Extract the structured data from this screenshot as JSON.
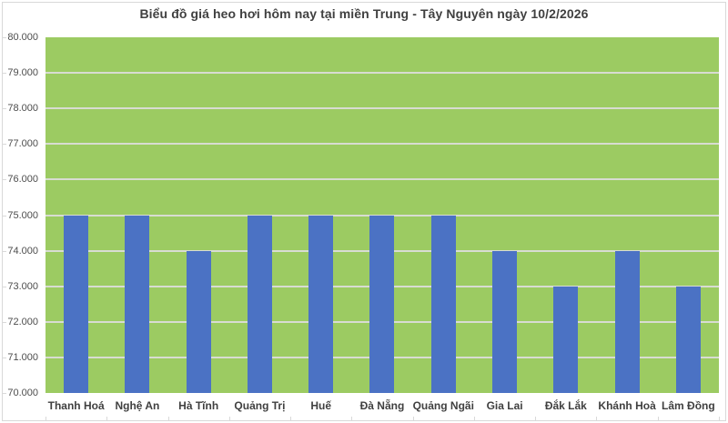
{
  "chart_data": {
    "type": "bar",
    "title": "Biểu đồ giá heo hơi hôm nay tại miền Trung - Tây Nguyên ngày 10/2/2026",
    "categories": [
      "Thanh Hoá",
      "Nghệ An",
      "Hà Tĩnh",
      "Quảng Trị",
      "Huế",
      "Đà Nẵng",
      "Quảng Ngãi",
      "Gia Lai",
      "Đắk Lắk",
      "Khánh Hoà",
      "Lâm Đồng"
    ],
    "values": [
      75000,
      75000,
      74000,
      75000,
      75000,
      75000,
      75000,
      74000,
      73000,
      74000,
      73000
    ],
    "xlabel": "",
    "ylabel": "",
    "ylim": [
      70000,
      80000
    ],
    "ytick_step": 1000,
    "ytick_labels": [
      "80.000",
      "79.000",
      "78.000",
      "77.000",
      "76.000",
      "75.000",
      "74.000",
      "73.000",
      "72.000",
      "71.000",
      "70.000"
    ],
    "grid": true,
    "legend": "none",
    "colors": {
      "bar": "#4b72c4",
      "plot_background": "#9ccb62",
      "gridline": "#d8dcd2",
      "title_text": "#404040",
      "axis_text": "#4d4d4d",
      "category_text": "#404040",
      "border": "#d9d9d9",
      "page_background": "#ffffff"
    }
  }
}
